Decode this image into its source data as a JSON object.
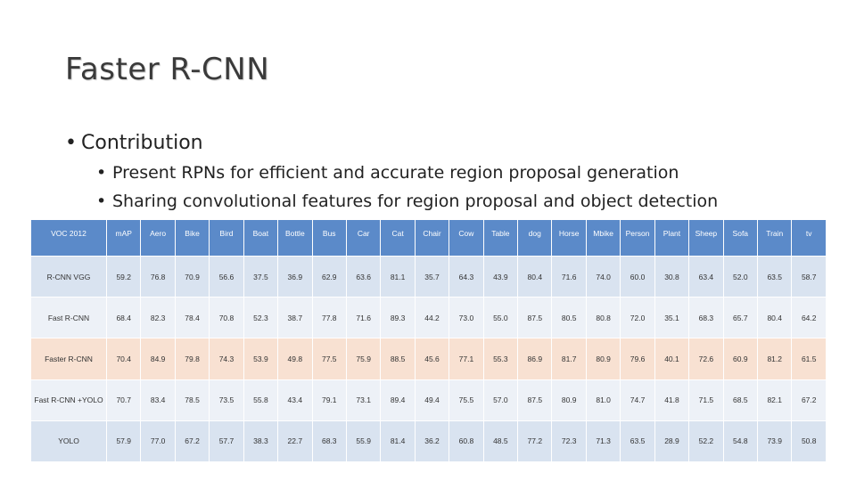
{
  "slide": {
    "title": "Faster R-CNN",
    "bullet": "Contribution",
    "sub_bullets": [
      "Present RPNs for efficient and accurate region proposal generation",
      "Sharing convolutional features for region proposal and object detection"
    ]
  },
  "table": {
    "headers": [
      "VOC 2012",
      "mAP",
      "Aero",
      "Bike",
      "Bird",
      "Boat",
      "Bottle",
      "Bus",
      "Car",
      "Cat",
      "Chair",
      "Cow",
      "Table",
      "dog",
      "Horse",
      "Mbike",
      "Person",
      "Plant",
      "Sheep",
      "Sofa",
      "Train",
      "tv"
    ],
    "rows": [
      {
        "name": "R-CNN VGG",
        "cells": [
          "59.2",
          "76.8",
          "70.9",
          "56.6",
          "37.5",
          "36.9",
          "62.9",
          "63.6",
          "81.1",
          "35.7",
          "64.3",
          "43.9",
          "80.4",
          "71.6",
          "74.0",
          "60.0",
          "30.8",
          "63.4",
          "52.0",
          "63.5",
          "58.7"
        ]
      },
      {
        "name": "Fast R-CNN",
        "cells": [
          "68.4",
          "82.3",
          "78.4",
          "70.8",
          "52.3",
          "38.7",
          "77.8",
          "71.6",
          "89.3",
          "44.2",
          "73.0",
          "55.0",
          "87.5",
          "80.5",
          "80.8",
          "72.0",
          "35.1",
          "68.3",
          "65.7",
          "80.4",
          "64.2"
        ]
      },
      {
        "name": "Faster R-CNN",
        "cells": [
          "70.4",
          "84.9",
          "79.8",
          "74.3",
          "53.9",
          "49.8",
          "77.5",
          "75.9",
          "88.5",
          "45.6",
          "77.1",
          "55.3",
          "86.9",
          "81.7",
          "80.9",
          "79.6",
          "40.1",
          "72.6",
          "60.9",
          "81.2",
          "61.5"
        ]
      },
      {
        "name": "Fast R-CNN +YOLO",
        "cells": [
          "70.7",
          "83.4",
          "78.5",
          "73.5",
          "55.8",
          "43.4",
          "79.1",
          "73.1",
          "89.4",
          "49.4",
          "75.5",
          "57.0",
          "87.5",
          "80.9",
          "81.0",
          "74.7",
          "41.8",
          "71.5",
          "68.5",
          "82.1",
          "67.2"
        ]
      },
      {
        "name": "YOLO",
        "cells": [
          "57.9",
          "77.0",
          "67.2",
          "57.7",
          "38.3",
          "22.7",
          "68.3",
          "55.9",
          "81.4",
          "36.2",
          "60.8",
          "48.5",
          "77.2",
          "72.3",
          "71.3",
          "63.5",
          "28.9",
          "52.2",
          "54.8",
          "73.9",
          "50.8"
        ]
      }
    ]
  },
  "colors": {
    "header": "#5b8ac9",
    "row_odd": "#d9e3f0",
    "row_even": "#edf1f7",
    "row_highlight": "#f8e1d2"
  }
}
